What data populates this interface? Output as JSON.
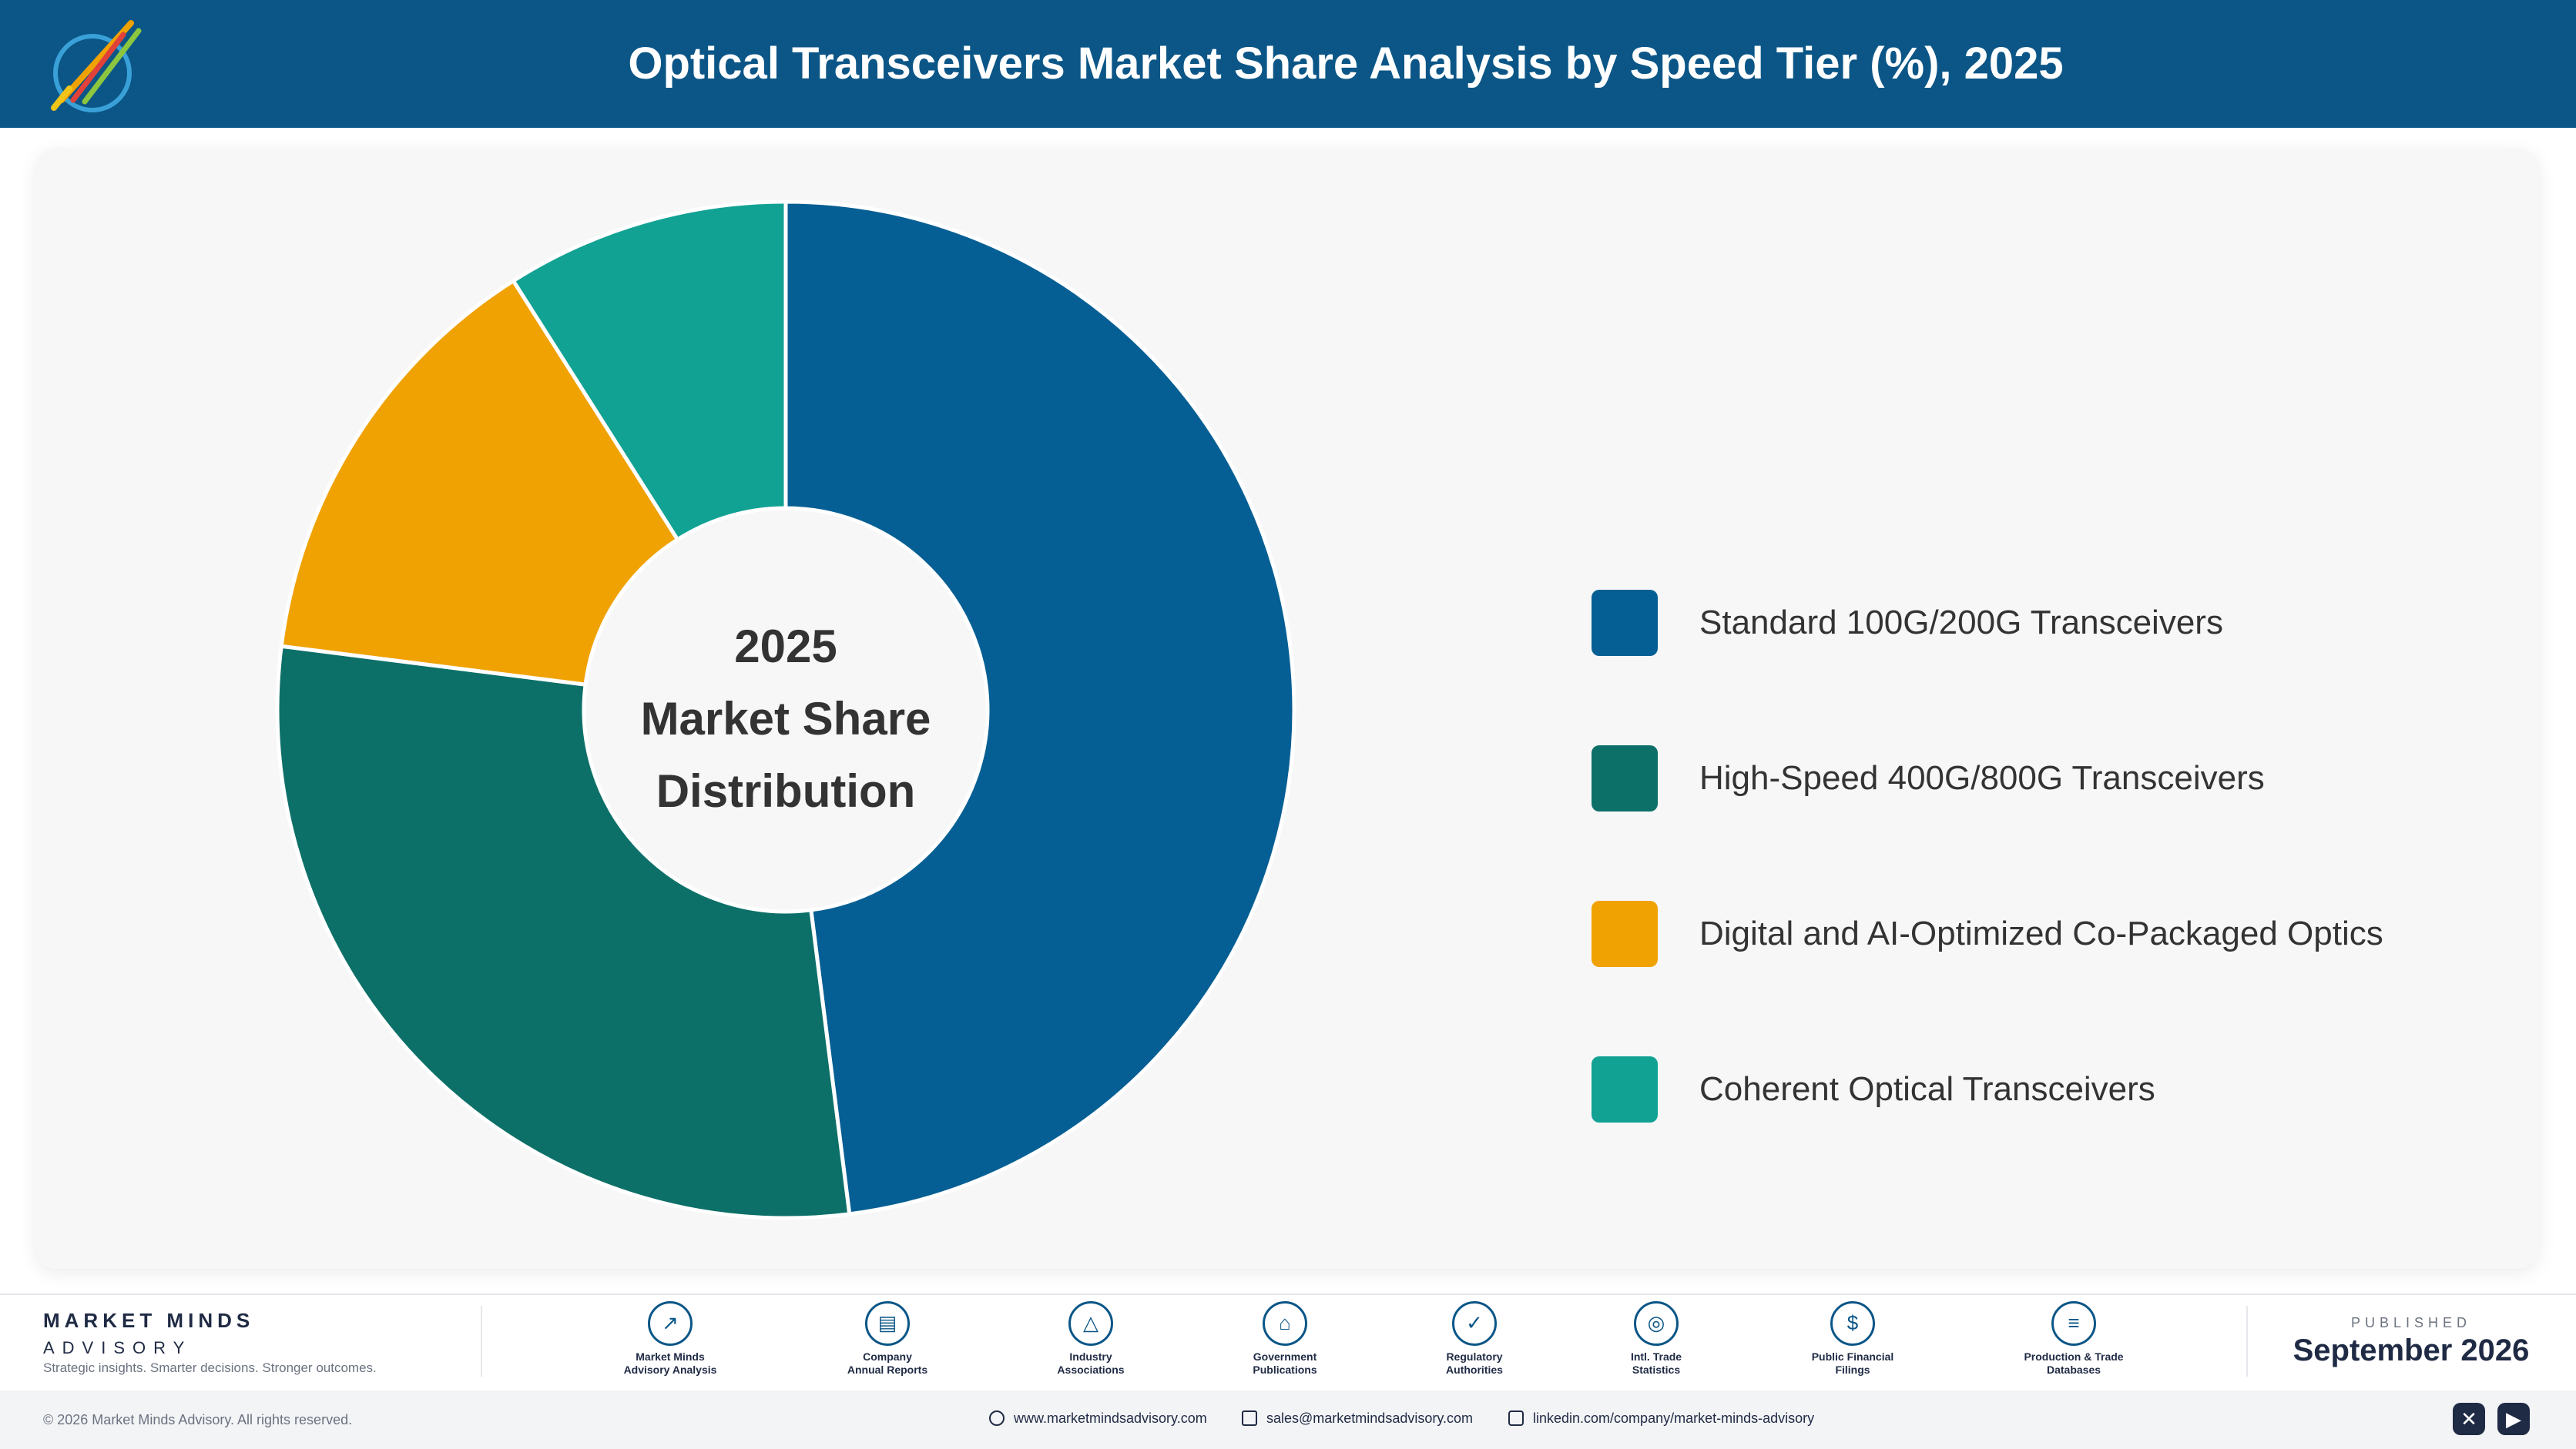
{
  "header": {
    "title": "Optical Transceivers Market Share Analysis by Speed Tier (%), 2025",
    "background": "#0b5687"
  },
  "chart_data": {
    "type": "pie",
    "variant": "donut",
    "title": "Optical Transceivers Market Share Analysis by Speed Tier (%), 2025",
    "center_label": [
      "2025",
      "Market Share",
      "Distribution"
    ],
    "categories": [
      "Standard 100G/200G Transceivers",
      "High-Speed 400G/800G Transceivers",
      "Digital and AI-Optimized Co-Packaged Optics",
      "Coherent Optical Transceivers"
    ],
    "values": [
      48,
      29,
      14,
      9
    ],
    "colors": [
      "#065f94",
      "#0d7068",
      "#f0a202",
      "#12a294"
    ],
    "legend": "right"
  },
  "footer": {
    "brand": {
      "name": "MARKET MINDS",
      "sub": "ADVISORY",
      "tagline": "Strategic insights. Smarter decisions. Stronger outcomes."
    },
    "sources": [
      {
        "label": "Market Minds\nAdvisory Analysis",
        "icon": "chart-line-icon",
        "glyph": "↗"
      },
      {
        "label": "Company\nAnnual Reports",
        "icon": "document-icon",
        "glyph": "▤"
      },
      {
        "label": "Industry\nAssociations",
        "icon": "network-icon",
        "glyph": "△"
      },
      {
        "label": "Government\nPublications",
        "icon": "government-icon",
        "glyph": "⌂"
      },
      {
        "label": "Regulatory\nAuthorities",
        "icon": "shield-icon",
        "glyph": "✓"
      },
      {
        "label": "Intl. Trade\nStatistics",
        "icon": "globe-icon",
        "glyph": "◎"
      },
      {
        "label": "Public Financial\nFilings",
        "icon": "dollar-icon",
        "glyph": "$"
      },
      {
        "label": "Production & Trade\nDatabases",
        "icon": "database-icon",
        "glyph": "≡"
      }
    ],
    "published_label": "PUBLISHED",
    "published_date": "September 2026",
    "copyright": "© 2026 Market Minds Advisory. All rights reserved.",
    "website": "www.marketmindsadvisory.com",
    "email": "sales@marketmindsadvisory.com",
    "linkedin": "linkedin.com/company/market-minds-advisory",
    "social": [
      {
        "icon": "x-twitter-icon",
        "glyph": "✕"
      },
      {
        "icon": "youtube-icon",
        "glyph": "▶"
      }
    ]
  }
}
